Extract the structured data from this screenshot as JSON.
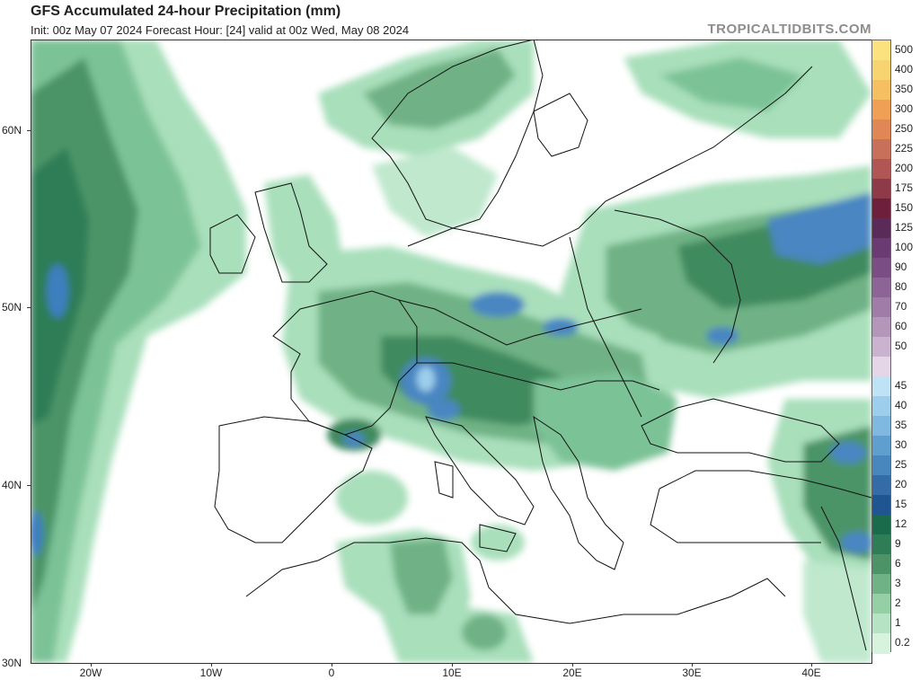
{
  "header": {
    "title": "GFS Accumulated 24-hour Precipitation (mm)",
    "subtitle": "Init: 00z May 07 2024   Forecast Hour: [24]   valid at 00z Wed, May 08 2024",
    "brand": "TROPICALTIDBITS.COM"
  },
  "map": {
    "lat_labels": [
      "60N",
      "50N",
      "40N",
      "30N"
    ],
    "lon_labels": [
      "20W",
      "10W",
      "0",
      "10E",
      "20E",
      "30E",
      "40E"
    ]
  },
  "legend": {
    "unit": "mm",
    "levels": [
      {
        "label": "500",
        "color": "#fbe27e"
      },
      {
        "label": "400",
        "color": "#f7d470"
      },
      {
        "label": "350",
        "color": "#f5bf62"
      },
      {
        "label": "300",
        "color": "#efa055"
      },
      {
        "label": "250",
        "color": "#e08755"
      },
      {
        "label": "225",
        "color": "#c9705a"
      },
      {
        "label": "200",
        "color": "#b05655"
      },
      {
        "label": "175",
        "color": "#8e3a48"
      },
      {
        "label": "150",
        "color": "#6e1f3c"
      },
      {
        "label": "125",
        "color": "#5a2a58"
      },
      {
        "label": "100",
        "color": "#6a3b72"
      },
      {
        "label": "90",
        "color": "#7a4d85"
      },
      {
        "label": "80",
        "color": "#8d6496"
      },
      {
        "label": "70",
        "color": "#a07ca8"
      },
      {
        "label": "60",
        "color": "#b596bb"
      },
      {
        "label": "50",
        "color": "#cab3cf"
      },
      {
        "label": "",
        "color": "#e4d6e7"
      },
      {
        "label": "45",
        "color": "#bfe3f5"
      },
      {
        "label": "40",
        "color": "#9dcfec"
      },
      {
        "label": "35",
        "color": "#7fb8e0"
      },
      {
        "label": "30",
        "color": "#5f9fd0"
      },
      {
        "label": "25",
        "color": "#4886be"
      },
      {
        "label": "20",
        "color": "#336ca6"
      },
      {
        "label": "15",
        "color": "#1f5590"
      },
      {
        "label": "12",
        "color": "#1a6a4c"
      },
      {
        "label": "9",
        "color": "#2f7d57"
      },
      {
        "label": "6",
        "color": "#4c9467"
      },
      {
        "label": "3",
        "color": "#6fb285"
      },
      {
        "label": "2",
        "color": "#94cfa6"
      },
      {
        "label": "1",
        "color": "#b5e3c3"
      },
      {
        "label": "0.2",
        "color": "#d7f3de"
      }
    ]
  }
}
